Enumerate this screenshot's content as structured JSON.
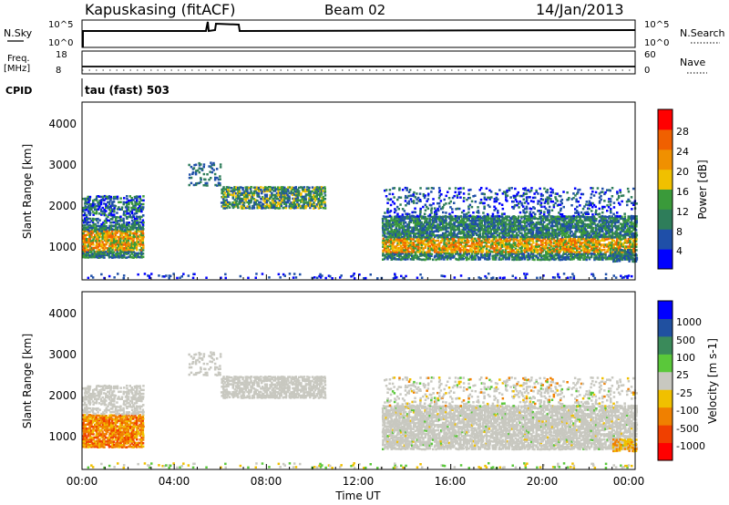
{
  "header": {
    "station": "Kapuskasing (fitACF)",
    "beam": "Beam 02",
    "date": "14/Jan/2013"
  },
  "strips": {
    "nsky_label": "N.Sky",
    "nsky_ticks": [
      "10^5",
      "10^0"
    ],
    "nsearch_label": "N.Search",
    "nsearch_ticks": [
      "10^5",
      "10^0"
    ],
    "freq_label_1": "Freq.",
    "freq_label_2": "[MHz]",
    "freq_ticks": [
      "18",
      "8"
    ],
    "nave_label": "Nave",
    "nave_ticks": [
      "60",
      "0"
    ],
    "cpid_label": "CPID",
    "cpid_text": "tau (fast) 503"
  },
  "colors": {
    "power_scale": [
      "#0000ff",
      "#1f4fa8",
      "#2e7d5a",
      "#3a9a3a",
      "#f0c000",
      "#f09000",
      "#f06000",
      "#ff0000"
    ],
    "velocity_scale": [
      "#0000ff",
      "#2050a0",
      "#3a8a5a",
      "#5ac83a",
      "#c8c8c0",
      "#f0c000",
      "#f08000",
      "#f04000",
      "#ff0000"
    ],
    "gray_scatter": "#c8c8c0"
  },
  "chart_data": [
    {
      "type": "heatmap",
      "name": "power",
      "ylabel": "Slant Range [km]",
      "yticks": [
        "1000",
        "2000",
        "3000",
        "4000"
      ],
      "ylim": [
        180,
        4500
      ],
      "xlim": [
        "00:00",
        "24:00"
      ],
      "colorbar_label": "Power [dB]",
      "colorbar_ticks": [
        "4",
        "8",
        "12",
        "16",
        "20",
        "24",
        "28"
      ],
      "features": [
        {
          "time_h": [
            0.0,
            2.5
          ],
          "range_km": [
            700,
            2200
          ],
          "peak_db": 24
        },
        {
          "time_h": [
            4.5,
            6.0
          ],
          "range_km": [
            2400,
            3000
          ],
          "peak_db": 12
        },
        {
          "time_h": [
            6.0,
            10.5
          ],
          "range_km": [
            1900,
            2400
          ],
          "peak_db": 12
        },
        {
          "time_h": [
            13.0,
            24.0
          ],
          "range_km": [
            600,
            2400
          ],
          "peak_db": 20
        }
      ]
    },
    {
      "type": "heatmap",
      "name": "velocity",
      "ylabel": "Slant Range [km]",
      "yticks": [
        "1000",
        "2000",
        "3000",
        "4000"
      ],
      "ylim": [
        180,
        4500
      ],
      "xlim": [
        "00:00",
        "24:00"
      ],
      "colorbar_label": "Velocity [m s-1]",
      "colorbar_ticks": [
        "1000",
        "500",
        "100",
        "25",
        "-25",
        "-100",
        "-500",
        "-1000"
      ],
      "xticks": [
        "00:00",
        "04:00",
        "08:00",
        "12:00",
        "16:00",
        "20:00",
        "00:00"
      ],
      "xlabel": "Time UT",
      "features": [
        {
          "time_h": [
            0.0,
            2.5
          ],
          "range_km": [
            700,
            1500
          ],
          "velocity_ms": -300
        },
        {
          "time_h": [
            0.0,
            2.5
          ],
          "range_km": [
            1500,
            2200
          ],
          "velocity_ms": 0
        },
        {
          "time_h": [
            6.0,
            10.5
          ],
          "range_km": [
            1900,
            2400
          ],
          "velocity_ms": 0
        },
        {
          "time_h": [
            13.0,
            24.0
          ],
          "range_km": [
            700,
            2200
          ],
          "velocity_ms": 0
        },
        {
          "time_h": [
            23.0,
            24.0
          ],
          "range_km": [
            600,
            900
          ],
          "velocity_ms": -200
        }
      ]
    }
  ]
}
